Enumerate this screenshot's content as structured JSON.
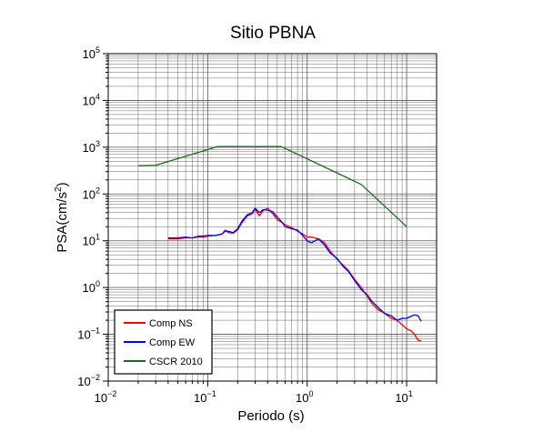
{
  "chart_data": {
    "type": "line",
    "title": "Sitio PBNA",
    "xlabel": "Periodo (s)",
    "ylabel_base": "PSA(cm/s",
    "ylabel_sup": "2",
    "ylabel_close": ")",
    "x_scale": "log",
    "y_scale": "log",
    "xlim": [
      0.01,
      20
    ],
    "ylim": [
      0.01,
      100000
    ],
    "grid": true,
    "legend_position": "bottom-left",
    "x_tick_labels": [
      {
        "base": "10",
        "exp": "−2",
        "value": 0.01
      },
      {
        "base": "10",
        "exp": "−1",
        "value": 0.1
      },
      {
        "base": "10",
        "exp": "0",
        "value": 1
      },
      {
        "base": "10",
        "exp": "1",
        "value": 10
      }
    ],
    "y_tick_labels": [
      {
        "base": "10",
        "exp": "−2",
        "value": 0.01
      },
      {
        "base": "10",
        "exp": "−1",
        "value": 0.1
      },
      {
        "base": "10",
        "exp": "0",
        "value": 1
      },
      {
        "base": "10",
        "exp": "1",
        "value": 10
      },
      {
        "base": "10",
        "exp": "2",
        "value": 100
      },
      {
        "base": "10",
        "exp": "3",
        "value": 1000
      },
      {
        "base": "10",
        "exp": "4",
        "value": 10000
      },
      {
        "base": "10",
        "exp": "5",
        "value": 100000
      }
    ],
    "series": [
      {
        "name": "Comp NS",
        "color": "#ff0000",
        "x": [
          0.04,
          0.05,
          0.06,
          0.07,
          0.08,
          0.09,
          0.1,
          0.12,
          0.14,
          0.15,
          0.16,
          0.18,
          0.2,
          0.22,
          0.25,
          0.28,
          0.3,
          0.33,
          0.36,
          0.4,
          0.45,
          0.5,
          0.55,
          0.6,
          0.7,
          0.8,
          0.9,
          1.0,
          1.1,
          1.3,
          1.5,
          1.7,
          2.0,
          2.3,
          2.6,
          3.0,
          3.5,
          4.0,
          4.5,
          5.0,
          6.0,
          7.0,
          8.0,
          9.0,
          10.0,
          11.0,
          12.0,
          13.0,
          14.0
        ],
        "y": [
          11,
          11,
          11.5,
          11.5,
          12,
          12,
          12.5,
          13,
          14,
          17,
          15,
          14.5,
          17,
          24,
          34,
          38,
          47,
          34,
          44,
          50,
          38,
          28,
          25,
          22,
          19,
          16,
          14,
          12,
          12,
          11,
          9,
          6,
          4,
          3,
          2.3,
          1.5,
          1.0,
          0.65,
          0.45,
          0.35,
          0.28,
          0.22,
          0.2,
          0.16,
          0.13,
          0.12,
          0.1,
          0.075,
          0.072
        ]
      },
      {
        "name": "Comp EW",
        "color": "#0000ff",
        "x": [
          0.04,
          0.05,
          0.06,
          0.07,
          0.08,
          0.09,
          0.1,
          0.12,
          0.14,
          0.15,
          0.16,
          0.18,
          0.2,
          0.22,
          0.25,
          0.28,
          0.3,
          0.33,
          0.36,
          0.4,
          0.45,
          0.5,
          0.55,
          0.6,
          0.7,
          0.8,
          0.9,
          1.0,
          1.1,
          1.3,
          1.5,
          1.7,
          2.0,
          2.3,
          2.6,
          3.0,
          3.5,
          4.0,
          4.5,
          5.0,
          6.0,
          7.0,
          8.0,
          9.0,
          10.0,
          11.0,
          12.0,
          13.0,
          14.0
        ],
        "y": [
          11.5,
          11.5,
          12,
          11.5,
          12.5,
          12.5,
          13,
          13,
          14,
          16,
          16,
          15,
          18,
          26,
          36,
          40,
          50,
          40,
          46,
          45,
          42,
          32,
          26,
          20,
          18,
          17,
          13,
          10,
          9,
          11,
          8,
          5.5,
          4.2,
          2.8,
          2.2,
          1.4,
          0.9,
          0.7,
          0.5,
          0.4,
          0.28,
          0.25,
          0.2,
          0.22,
          0.22,
          0.24,
          0.26,
          0.25,
          0.19
        ]
      },
      {
        "name": "CSCR 2010",
        "color": "#1a6b1a",
        "x": [
          0.02,
          0.03,
          0.125,
          0.55,
          3.5,
          10
        ],
        "y": [
          400,
          410,
          1030,
          1030,
          160,
          20
        ]
      }
    ]
  }
}
